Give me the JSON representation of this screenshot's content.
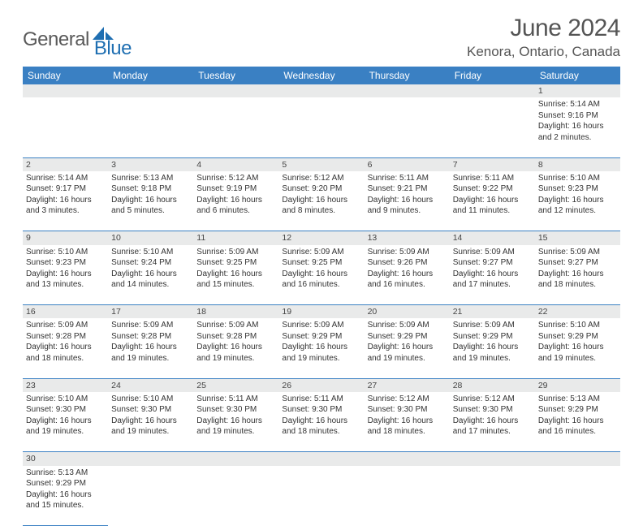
{
  "logo": {
    "general": "General",
    "blue": "Blue"
  },
  "title": "June 2024",
  "location": "Kenora, Ontario, Canada",
  "colors": {
    "header_bg": "#3a80c3",
    "header_fg": "#ffffff",
    "daynum_bg": "#e9eaea",
    "row_divider": "#3a80c3",
    "logo_gray": "#5a5a5a",
    "logo_blue": "#1f6fb2"
  },
  "weekdays": [
    "Sunday",
    "Monday",
    "Tuesday",
    "Wednesday",
    "Thursday",
    "Friday",
    "Saturday"
  ],
  "first_weekday_index": 6,
  "days": [
    {
      "n": 1,
      "sunrise": "5:14 AM",
      "sunset": "9:16 PM",
      "daylight": "16 hours and 2 minutes."
    },
    {
      "n": 2,
      "sunrise": "5:14 AM",
      "sunset": "9:17 PM",
      "daylight": "16 hours and 3 minutes."
    },
    {
      "n": 3,
      "sunrise": "5:13 AM",
      "sunset": "9:18 PM",
      "daylight": "16 hours and 5 minutes."
    },
    {
      "n": 4,
      "sunrise": "5:12 AM",
      "sunset": "9:19 PM",
      "daylight": "16 hours and 6 minutes."
    },
    {
      "n": 5,
      "sunrise": "5:12 AM",
      "sunset": "9:20 PM",
      "daylight": "16 hours and 8 minutes."
    },
    {
      "n": 6,
      "sunrise": "5:11 AM",
      "sunset": "9:21 PM",
      "daylight": "16 hours and 9 minutes."
    },
    {
      "n": 7,
      "sunrise": "5:11 AM",
      "sunset": "9:22 PM",
      "daylight": "16 hours and 11 minutes."
    },
    {
      "n": 8,
      "sunrise": "5:10 AM",
      "sunset": "9:23 PM",
      "daylight": "16 hours and 12 minutes."
    },
    {
      "n": 9,
      "sunrise": "5:10 AM",
      "sunset": "9:23 PM",
      "daylight": "16 hours and 13 minutes."
    },
    {
      "n": 10,
      "sunrise": "5:10 AM",
      "sunset": "9:24 PM",
      "daylight": "16 hours and 14 minutes."
    },
    {
      "n": 11,
      "sunrise": "5:09 AM",
      "sunset": "9:25 PM",
      "daylight": "16 hours and 15 minutes."
    },
    {
      "n": 12,
      "sunrise": "5:09 AM",
      "sunset": "9:25 PM",
      "daylight": "16 hours and 16 minutes."
    },
    {
      "n": 13,
      "sunrise": "5:09 AM",
      "sunset": "9:26 PM",
      "daylight": "16 hours and 16 minutes."
    },
    {
      "n": 14,
      "sunrise": "5:09 AM",
      "sunset": "9:27 PM",
      "daylight": "16 hours and 17 minutes."
    },
    {
      "n": 15,
      "sunrise": "5:09 AM",
      "sunset": "9:27 PM",
      "daylight": "16 hours and 18 minutes."
    },
    {
      "n": 16,
      "sunrise": "5:09 AM",
      "sunset": "9:28 PM",
      "daylight": "16 hours and 18 minutes."
    },
    {
      "n": 17,
      "sunrise": "5:09 AM",
      "sunset": "9:28 PM",
      "daylight": "16 hours and 19 minutes."
    },
    {
      "n": 18,
      "sunrise": "5:09 AM",
      "sunset": "9:28 PM",
      "daylight": "16 hours and 19 minutes."
    },
    {
      "n": 19,
      "sunrise": "5:09 AM",
      "sunset": "9:29 PM",
      "daylight": "16 hours and 19 minutes."
    },
    {
      "n": 20,
      "sunrise": "5:09 AM",
      "sunset": "9:29 PM",
      "daylight": "16 hours and 19 minutes."
    },
    {
      "n": 21,
      "sunrise": "5:09 AM",
      "sunset": "9:29 PM",
      "daylight": "16 hours and 19 minutes."
    },
    {
      "n": 22,
      "sunrise": "5:10 AM",
      "sunset": "9:29 PM",
      "daylight": "16 hours and 19 minutes."
    },
    {
      "n": 23,
      "sunrise": "5:10 AM",
      "sunset": "9:30 PM",
      "daylight": "16 hours and 19 minutes."
    },
    {
      "n": 24,
      "sunrise": "5:10 AM",
      "sunset": "9:30 PM",
      "daylight": "16 hours and 19 minutes."
    },
    {
      "n": 25,
      "sunrise": "5:11 AM",
      "sunset": "9:30 PM",
      "daylight": "16 hours and 19 minutes."
    },
    {
      "n": 26,
      "sunrise": "5:11 AM",
      "sunset": "9:30 PM",
      "daylight": "16 hours and 18 minutes."
    },
    {
      "n": 27,
      "sunrise": "5:12 AM",
      "sunset": "9:30 PM",
      "daylight": "16 hours and 18 minutes."
    },
    {
      "n": 28,
      "sunrise": "5:12 AM",
      "sunset": "9:30 PM",
      "daylight": "16 hours and 17 minutes."
    },
    {
      "n": 29,
      "sunrise": "5:13 AM",
      "sunset": "9:29 PM",
      "daylight": "16 hours and 16 minutes."
    },
    {
      "n": 30,
      "sunrise": "5:13 AM",
      "sunset": "9:29 PM",
      "daylight": "16 hours and 15 minutes."
    }
  ],
  "labels": {
    "sunrise": "Sunrise:",
    "sunset": "Sunset:",
    "daylight": "Daylight:"
  }
}
